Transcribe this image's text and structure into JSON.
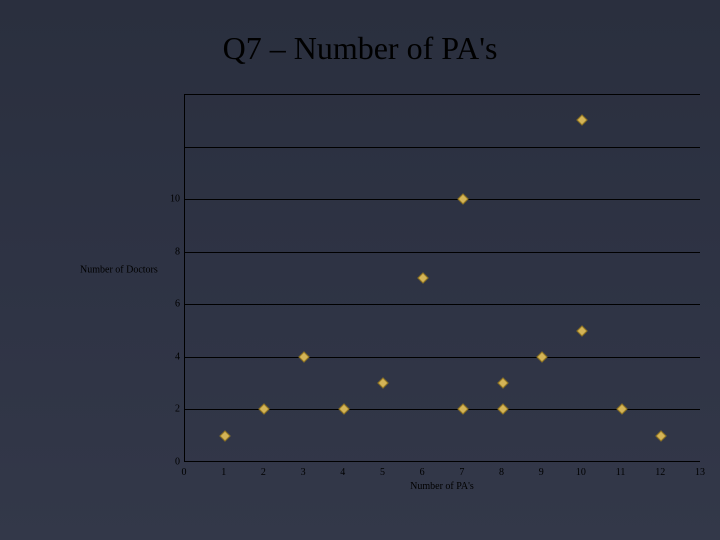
{
  "slide": {
    "title": "Q7 – Number of PA's"
  },
  "chart": {
    "type": "scatter",
    "xlabel": "Number of PA's",
    "ylabel": "Number of Doctors",
    "xlim": [
      0,
      13
    ],
    "ylim": [
      0,
      14
    ],
    "xtick_step": 1,
    "ytick_step": 2,
    "ymax_drawn": 14,
    "ymax_labeled": 10,
    "grid_color": "#000000",
    "background_color": "transparent",
    "marker": {
      "shape": "diamond",
      "fill": "#d4b456",
      "border": "#8a6f1f",
      "size": 8
    },
    "points": [
      {
        "x": 1,
        "y": 1
      },
      {
        "x": 2,
        "y": 2
      },
      {
        "x": 3,
        "y": 4
      },
      {
        "x": 4,
        "y": 2
      },
      {
        "x": 5,
        "y": 3
      },
      {
        "x": 6,
        "y": 7
      },
      {
        "x": 7,
        "y": 10
      },
      {
        "x": 7,
        "y": 2
      },
      {
        "x": 8,
        "y": 3
      },
      {
        "x": 8,
        "y": 2
      },
      {
        "x": 9,
        "y": 4
      },
      {
        "x": 10,
        "y": 5
      },
      {
        "x": 10,
        "y": 13
      },
      {
        "x": 11,
        "y": 2
      },
      {
        "x": 12,
        "y": 1
      }
    ]
  }
}
